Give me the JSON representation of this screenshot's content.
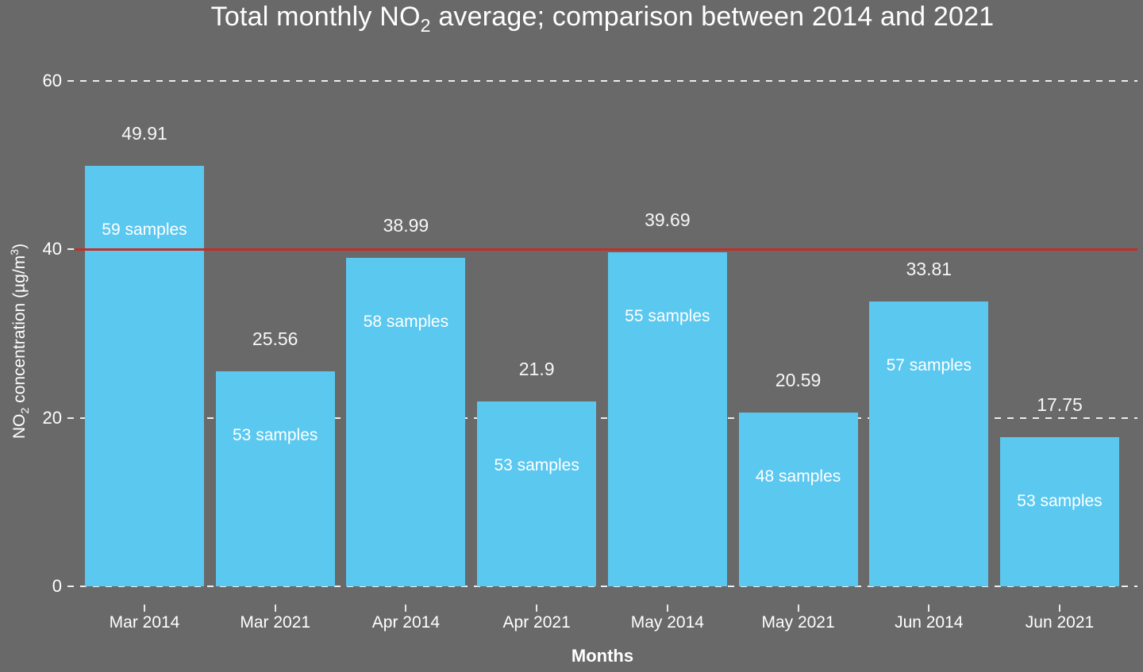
{
  "title_parts": {
    "pre": "Total monthly NO",
    "sub": "2",
    "post": " average; comparison between 2014 and 2021"
  },
  "ylabel_parts": {
    "pre": "NO",
    "sub": "2",
    "mid": " concentration (µg/m",
    "sup": "3",
    "post": ")"
  },
  "chart_data": {
    "type": "bar",
    "title": "Total monthly NO2 average; comparison between 2014 and 2021",
    "xlabel": "Months",
    "ylabel": "NO2 concentration (µg/m3)",
    "categories": [
      "Mar 2014",
      "Mar 2021",
      "Apr 2014",
      "Apr 2021",
      "May 2014",
      "May 2021",
      "Jun 2014",
      "Jun 2021"
    ],
    "values": [
      49.91,
      25.56,
      38.99,
      21.9,
      39.69,
      20.59,
      33.81,
      17.75
    ],
    "value_labels": [
      "49.91",
      "25.56",
      "38.99",
      "21.9",
      "39.69",
      "20.59",
      "33.81",
      "17.75"
    ],
    "sample_labels": [
      "59 samples",
      "53 samples",
      "58 samples",
      "53 samples",
      "55 samples",
      "48 samples",
      "57 samples",
      "53 samples"
    ],
    "yticks": [
      0,
      20,
      40,
      60
    ],
    "ylim": [
      0,
      60
    ],
    "reference_line": {
      "value": 40,
      "color": "#c03028"
    },
    "grid": "dashed horizontal lines at yticks, drawn behind bars",
    "legend": "none",
    "bar_color": "#5bc8f0",
    "background_color": "#696969",
    "text_color": "#ffffff"
  }
}
